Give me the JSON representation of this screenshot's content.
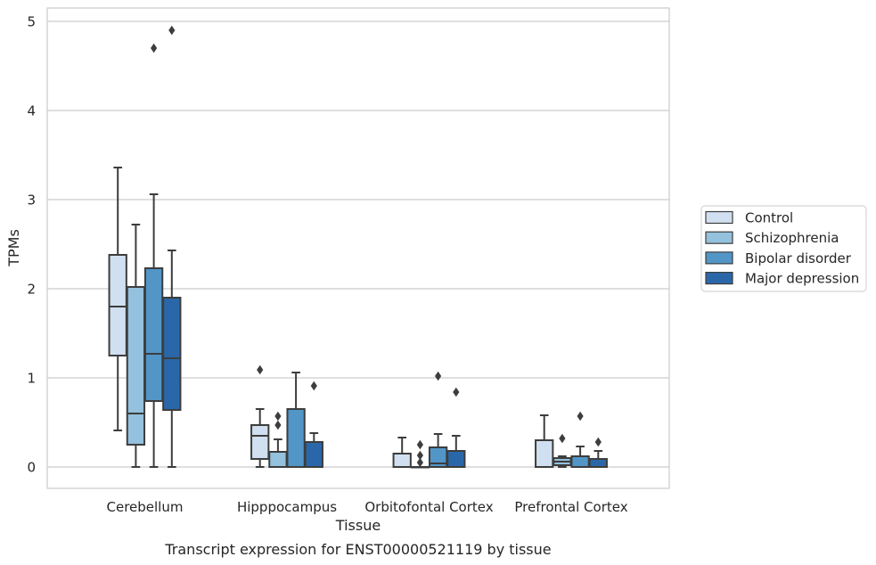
{
  "chart_data": {
    "type": "box",
    "title": "",
    "caption": "Transcript expression for ENST00000521119 by tissue",
    "xlabel": "Tissue",
    "ylabel": "TPMs",
    "ylim": [
      -0.24,
      5.15
    ],
    "yticks": [
      "0",
      "1",
      "2",
      "3",
      "4",
      "5"
    ],
    "grid": "horizontal",
    "legend_position": "right",
    "categories": [
      "Cerebellum",
      "Hipppocampus",
      "Orbitofontal Cortex",
      "Prefrontal Cortex"
    ],
    "series": [
      {
        "name": "Control",
        "color": "#d0e0f0",
        "boxes": [
          {
            "min": 0.41,
            "q1": 1.25,
            "median": 1.8,
            "q3": 2.38,
            "max": 3.36,
            "outliers": []
          },
          {
            "min": 0.0,
            "q1": 0.09,
            "median": 0.35,
            "q3": 0.47,
            "max": 0.65,
            "outliers": [
              1.09
            ]
          },
          {
            "min": 0.0,
            "q1": 0.0,
            "median": 0.0,
            "q3": 0.15,
            "max": 0.33,
            "outliers": []
          },
          {
            "min": 0.0,
            "q1": 0.0,
            "median": 0.0,
            "q3": 0.3,
            "max": 0.58,
            "outliers": []
          }
        ]
      },
      {
        "name": "Schizophrenia",
        "color": "#94c1dd",
        "boxes": [
          {
            "min": 0.0,
            "q1": 0.25,
            "median": 0.6,
            "q3": 2.02,
            "max": 2.72,
            "outliers": []
          },
          {
            "min": 0.0,
            "q1": 0.0,
            "median": 0.0,
            "q3": 0.17,
            "max": 0.31,
            "outliers": [
              0.47,
              0.57
            ]
          },
          {
            "min": 0.0,
            "q1": 0.0,
            "median": 0.0,
            "q3": 0.0,
            "max": 0.0,
            "outliers": [
              0.05,
              0.13,
              0.25
            ]
          },
          {
            "min": 0.0,
            "q1": 0.02,
            "median": 0.06,
            "q3": 0.1,
            "max": 0.12,
            "outliers": [
              0.32
            ]
          }
        ]
      },
      {
        "name": "Bipolar disorder",
        "color": "#5296c8",
        "boxes": [
          {
            "min": 0.0,
            "q1": 0.74,
            "median": 1.27,
            "q3": 2.23,
            "max": 3.06,
            "outliers": [
              4.7
            ]
          },
          {
            "min": 0.0,
            "q1": 0.0,
            "median": 0.0,
            "q3": 0.65,
            "max": 1.06,
            "outliers": []
          },
          {
            "min": 0.0,
            "q1": 0.0,
            "median": 0.04,
            "q3": 0.22,
            "max": 0.37,
            "outliers": [
              1.02
            ]
          },
          {
            "min": 0.0,
            "q1": 0.0,
            "median": 0.0,
            "q3": 0.12,
            "max": 0.23,
            "outliers": [
              0.57
            ]
          }
        ]
      },
      {
        "name": "Major depression",
        "color": "#2a67a8",
        "boxes": [
          {
            "min": 0.0,
            "q1": 0.64,
            "median": 1.22,
            "q3": 1.9,
            "max": 2.43,
            "outliers": [
              4.9
            ]
          },
          {
            "min": 0.0,
            "q1": 0.0,
            "median": 0.0,
            "q3": 0.28,
            "max": 0.38,
            "outliers": [
              0.91
            ]
          },
          {
            "min": 0.0,
            "q1": 0.0,
            "median": 0.0,
            "q3": 0.18,
            "max": 0.35,
            "outliers": [
              0.84
            ]
          },
          {
            "min": 0.0,
            "q1": 0.0,
            "median": 0.0,
            "q3": 0.09,
            "max": 0.18,
            "outliers": [
              0.28
            ]
          }
        ]
      }
    ]
  }
}
